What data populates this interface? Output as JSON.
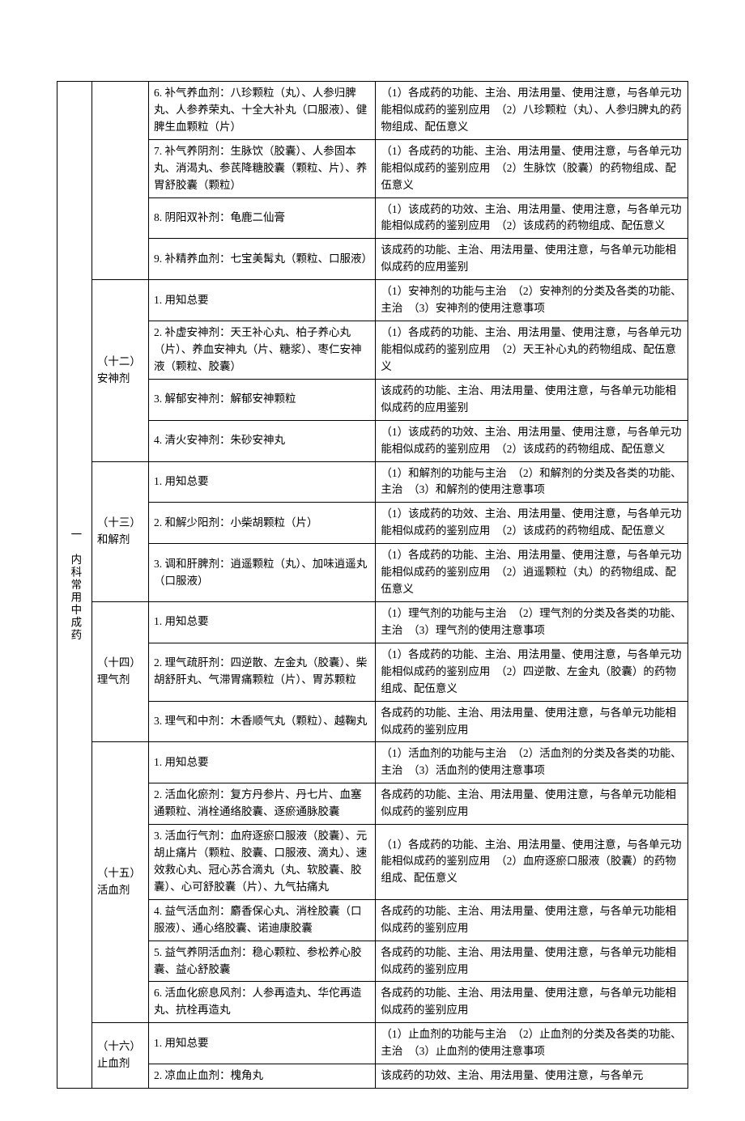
{
  "table": {
    "columns": [
      "col1",
      "col2",
      "col3",
      "col4"
    ],
    "column_widths_pct": [
      5.5,
      9,
      36,
      49.5
    ],
    "border_color": "#000000",
    "background_color": "#ffffff",
    "text_color": "#000000",
    "font_family": "SimSun",
    "font_size_pt": 10.5
  },
  "col1": {
    "label": "一　内科常用中成药"
  },
  "sections": [
    {
      "name": "（十二）安神剂",
      "header": "",
      "rows": [
        {
          "c3": "6. 补气养血剂：八珍颗粒（丸）、人参归脾丸、人参养荣丸、十全大补丸（口服液）、健脾生血颗粒（片）",
          "c4": "（1）各成药的功能、主治、用法用量、使用注意，与各单元功能相似成药的鉴别应用　（2）八珍颗粒（丸）、人参归脾丸的药物组成、配伍意义"
        },
        {
          "c3": "7. 补气养阴剂：生脉饮（胶囊）、人参固本丸、消渴丸、参芪降糖胶囊（颗粒、片）、养胃舒胶囊（颗粒）",
          "c4": "（1）各成药的功能、主治、用法用量、使用注意，与各单元功能相似成药的鉴别应用　（2）生脉饮（胶囊）的药物组成、配伍意义"
        },
        {
          "c3": "8. 阴阳双补剂：龟鹿二仙膏",
          "c4": "（1）该成药的功效、主治、用法用量、使用注意，与各单元功能相似成药的鉴别应用　（2）该成药的药物组成、配伍意义"
        },
        {
          "c3": "9. 补精养血剂：七宝美髯丸（颗粒、口服液）",
          "c4": "该成药的功能、主治、用法用量、使用注意，与各单元功能相似成药的应用鉴别"
        }
      ]
    },
    {
      "name": "（十二）安神剂",
      "header": "（十二）安神剂",
      "rows": [
        {
          "c3": "1. 用知总要",
          "c4": "（1）安神剂的功能与主治　（2）安神剂的分类及各类的功能、主治　（3）安神剂的使用注意事项"
        },
        {
          "c3": "2. 补虚安神剂：天王补心丸、柏子养心丸（片）、养血安神丸（片、糖浆）、枣仁安神液（颗粒、胶囊）",
          "c4": "（1）各成药的功能、主治、用法用量、使用注意，与各单元功能相似成药的鉴别应用　（2）天王补心丸的药物组成、配伍意义"
        },
        {
          "c3": "3. 解郁安神剂：解郁安神颗粒",
          "c4": "该成药的功能、主治、用法用量、使用注意，与各单元功能相似成药的应用鉴别"
        },
        {
          "c3": "4. 清火安神剂：朱砂安神丸",
          "c4": "（1）该成药的功效、主治、用法用量、使用注意，与各单元功能相似成药的鉴别应用　（2）该成药的药物组成、配伍意义"
        }
      ]
    },
    {
      "name": "（十三）和解剂",
      "header": "（十三）和解剂",
      "rows": [
        {
          "c3": "1. 用知总要",
          "c4": "（1）和解剂的功能与主治　（2）和解剂的分类及各类的功能、主治　（3）和解剂的使用注意事项"
        },
        {
          "c3": "2. 和解少阳剂：小柴胡颗粒（片）",
          "c4": "（1）该成药的功效、主治、用法用量、使用注意，与各单元功能相似成药的鉴别应用　（2）该成药的药物组成、配伍意义"
        },
        {
          "c3": "3. 调和肝脾剂：逍遥颗粒（丸）、加味逍遥丸（口服液）",
          "c4": "（1）各成药的功能、主治、用法用量、使用注意，与各单元功能相似成药的鉴别应用　（2）逍遥颗粒（丸）的药物组成、配伍意义"
        }
      ]
    },
    {
      "name": "（十四）理气剂",
      "header": "（十四）理气剂",
      "rows": [
        {
          "c3": "1. 用知总要",
          "c4": "（1）理气剂的功能与主治　（2）理气剂的分类及各类的功能、主治　（3）理气剂的使用注意事项"
        },
        {
          "c3": "2. 理气疏肝剂：四逆散、左金丸（胶囊）、柴胡舒肝丸、气滞胃痛颗粒（片）、胃苏颗粒",
          "c4": "（1）各成药的功能、主治、用法用量、使用注意，与各单元功能相似成药的鉴别应用　（2）四逆散、左金丸（胶囊）的药物组成、配伍意义"
        },
        {
          "c3": "3. 理气和中剂：木香顺气丸（颗粒）、越鞠丸",
          "c4": "各成药的功能、主治、用法用量、使用注意，与各单元功能相似成药的鉴别应用"
        }
      ]
    },
    {
      "name": "（十五）活血剂",
      "header": "（十五）活血剂",
      "rows": [
        {
          "c3": "1. 用知总要",
          "c4": "（1）活血剂的功能与主治　（2）活血剂的分类及各类的功能、主治　（3）活血剂的使用注意事项"
        },
        {
          "c3": "2. 活血化瘀剂：复方丹参片、丹七片、血塞通颗粒、消栓通络胶囊、逐瘀通脉胶囊",
          "c4": "各成药的功能、主治、用法用量、使用注意，与各单元功能相似成药的鉴别应用"
        },
        {
          "c3": "3. 活血行气剂：血府逐瘀口服液（胶囊）、元胡止痛片（颗粒、胶囊、口服液、滴丸）、速效救心丸、冠心苏合滴丸（丸、软胶囊、胶囊）、心可舒胶囊（片）、九气拈痛丸",
          "c4": "（1）各成药的功能、主治、用法用量、使用注意，与各单元功能相似成药的鉴别应用　（2）血府逐瘀口服液（胶囊）的药物组成、配伍意义"
        },
        {
          "c3": "4. 益气活血剂：麝香保心丸、消栓胶囊（口服液）、通心络胶囊、诺迪康胶囊",
          "c4": "各成药的功能、主治、用法用量、使用注意，与各单元功能相似成药的鉴别应用"
        },
        {
          "c3": "5. 益气养阴活血剂：稳心颗粒、参松养心胶囊、益心舒胶囊",
          "c4": "各成药的功能、主治、用法用量、使用注意，与各单元功能相似成药的鉴别应用"
        },
        {
          "c3": "6. 活血化瘀息风剂：人参再造丸、华佗再造丸、抗栓再造丸",
          "c4": "各成药的功能、主治、用法用量、使用注意，与各单元功能相似成药的鉴别应用"
        }
      ]
    },
    {
      "name": "（十六）止血剂",
      "header": "（十六）止血剂",
      "rows": [
        {
          "c3": "1. 用知总要",
          "c4": "（1）止血剂的功能与主治　（2）止血剂的分类及各类的功能、主治　（3）止血剂的使用注意事项"
        },
        {
          "c3": "2. 凉血止血剂：槐角丸",
          "c4": "该成药的功效、主治、用法用量、使用注意，与各单元"
        }
      ]
    }
  ]
}
